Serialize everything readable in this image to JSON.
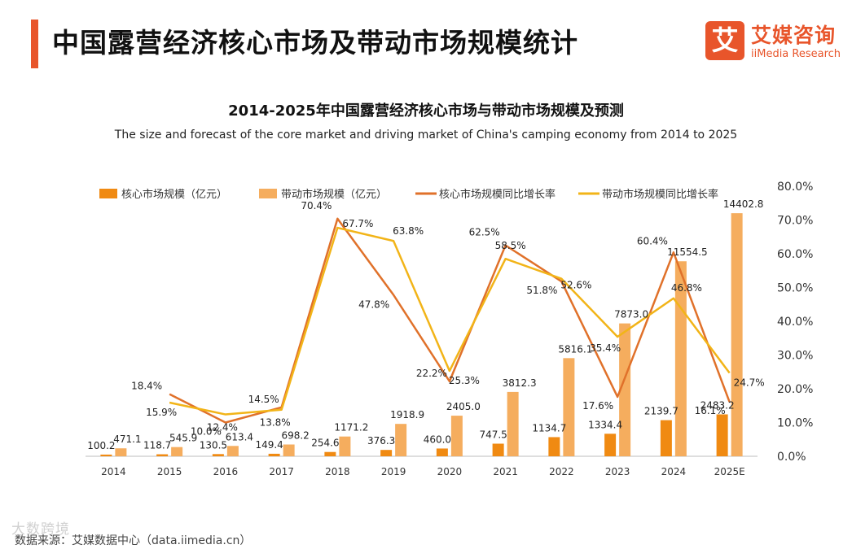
{
  "header": {
    "title": "中国露营经济核心市场及带动市场规模统计",
    "logo_mark": "艾",
    "logo_cn": "艾媒咨询",
    "logo_en": "iiMedia Research"
  },
  "footer": {
    "source": "数据来源：艾媒数据中心（data.iimedia.cn）",
    "watermark": "大数跨境"
  },
  "colors": {
    "accent": "#e8552b",
    "core_bar": "#f08a12",
    "driving_bar": "#f5ad5e",
    "core_line": "#e0712a",
    "driving_line": "#f2b418"
  },
  "chart_data": {
    "type": "bar",
    "title": "2014-2025年中国露营经济核心市场与带动市场规模及预测",
    "subtitle": "The size and forecast of the core market and driving market of China's camping economy from 2014 to 2025",
    "categories": [
      "2014",
      "2015",
      "2016",
      "2017",
      "2018",
      "2019",
      "2020",
      "2021",
      "2022",
      "2023",
      "2024",
      "2025E"
    ],
    "series": [
      {
        "name": "核心市场规模（亿元）",
        "kind": "bar",
        "values": [
          100.2,
          118.7,
          130.5,
          149.4,
          254.6,
          376.3,
          460.0,
          747.5,
          1134.7,
          1334.4,
          2139.7,
          2483.2
        ],
        "labels": [
          "100.2",
          "118.7",
          "130.5",
          "149.4",
          "254.6",
          "376.3",
          "460.0",
          "747.5",
          "1134.7",
          "1334.4",
          "2139.7",
          "2483.2"
        ]
      },
      {
        "name": "带动市场规模（亿元）",
        "kind": "bar",
        "values": [
          471.1,
          545.9,
          613.4,
          698.2,
          1171.2,
          1918.9,
          2405.0,
          3812.3,
          5816.1,
          7873.0,
          11554.5,
          14402.8
        ],
        "labels": [
          "471.1",
          "545.9",
          "613.4",
          "698.2",
          "1171.2",
          "1918.9",
          "2405.0",
          "3812.3",
          "5816.1",
          "7873.0",
          "11554.5",
          "14402.8"
        ]
      },
      {
        "name": "核心市场规模同比增长率",
        "kind": "line",
        "axis": "right",
        "values": [
          null,
          18.4,
          10.0,
          14.5,
          70.4,
          47.8,
          22.2,
          62.5,
          51.8,
          17.6,
          60.4,
          16.1
        ],
        "labels": [
          "",
          "18.4%",
          "10.0%",
          "14.5%",
          "70.4%",
          "47.8%",
          "22.2%",
          "62.5%",
          "51.8%",
          "17.6%",
          "60.4%",
          "16.1%"
        ]
      },
      {
        "name": "带动市场规模同比增长率",
        "kind": "line",
        "axis": "right",
        "values": [
          null,
          15.9,
          12.4,
          13.8,
          67.7,
          63.8,
          25.3,
          58.5,
          52.6,
          35.4,
          46.8,
          24.7
        ],
        "labels": [
          "",
          "15.9%",
          "12.4%",
          "13.8%",
          "67.7%",
          "63.8%",
          "25.3%",
          "58.5%",
          "52.6%",
          "35.4%",
          "46.8%",
          "24.7%"
        ]
      }
    ],
    "y_left_range": [
      0,
      16000
    ],
    "y_right_range": [
      0,
      80
    ],
    "y_right_ticks": [
      "0.0%",
      "10.0%",
      "20.0%",
      "30.0%",
      "40.0%",
      "50.0%",
      "60.0%",
      "70.0%",
      "80.0%"
    ],
    "grid": false,
    "legend_position": "top-left"
  }
}
